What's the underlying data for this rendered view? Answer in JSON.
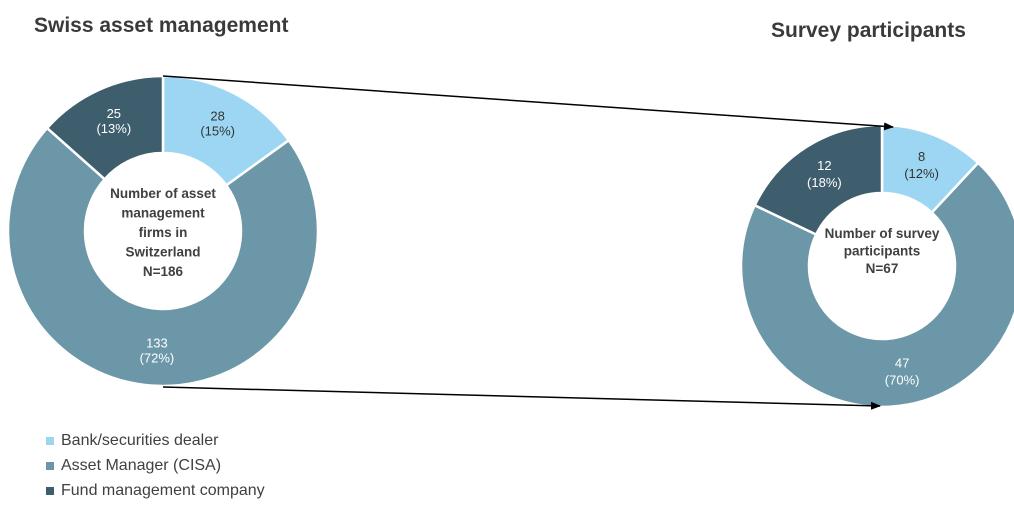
{
  "colors": {
    "bank": "#9dd6f2",
    "asset_manager": "#6b97a8",
    "fund_management": "#3f5e6d",
    "text_dark": "#333333",
    "arrow": "#000000"
  },
  "legend": [
    {
      "label": "Bank/securities dealer",
      "color": "#9dd6f2"
    },
    {
      "label": "Asset Manager (CISA)",
      "color": "#6b97a8"
    },
    {
      "label": "Fund management company",
      "color": "#3f5e6d"
    }
  ],
  "chart_data": [
    {
      "type": "pie",
      "title": "Swiss asset management",
      "center_label": [
        "Number of asset",
        "management",
        "firms in",
        "Switzerland",
        "N=186"
      ],
      "slices": [
        {
          "category": "Bank/securities dealer",
          "value": 28,
          "value_label": "28",
          "percent_label": "(15%)",
          "color": "#9dd6f2",
          "label_color": "#333333"
        },
        {
          "category": "Asset Manager (CISA)",
          "value": 133,
          "value_label": "133",
          "percent_label": "(72%)",
          "color": "#6b97a8",
          "label_color": "#ffffff"
        },
        {
          "category": "Fund management company",
          "value": 25,
          "value_label": "25",
          "percent_label": "(13%)",
          "color": "#3f5e6d",
          "label_color": "#ffffff"
        }
      ]
    },
    {
      "type": "pie",
      "title": "Survey participants",
      "center_label": [
        "Number of survey",
        "participants",
        "N=67"
      ],
      "slices": [
        {
          "category": "Bank/securities dealer",
          "value": 8,
          "value_label": "8",
          "percent_label": "(12%)",
          "color": "#9dd6f2",
          "label_color": "#333333"
        },
        {
          "category": "Asset Manager (CISA)",
          "value": 47,
          "value_label": "47",
          "percent_label": "(70%)",
          "color": "#6b97a8",
          "label_color": "#ffffff"
        },
        {
          "category": "Fund management company",
          "value": 12,
          "value_label": "12",
          "percent_label": "(18%)",
          "color": "#3f5e6d",
          "label_color": "#ffffff"
        }
      ]
    }
  ]
}
